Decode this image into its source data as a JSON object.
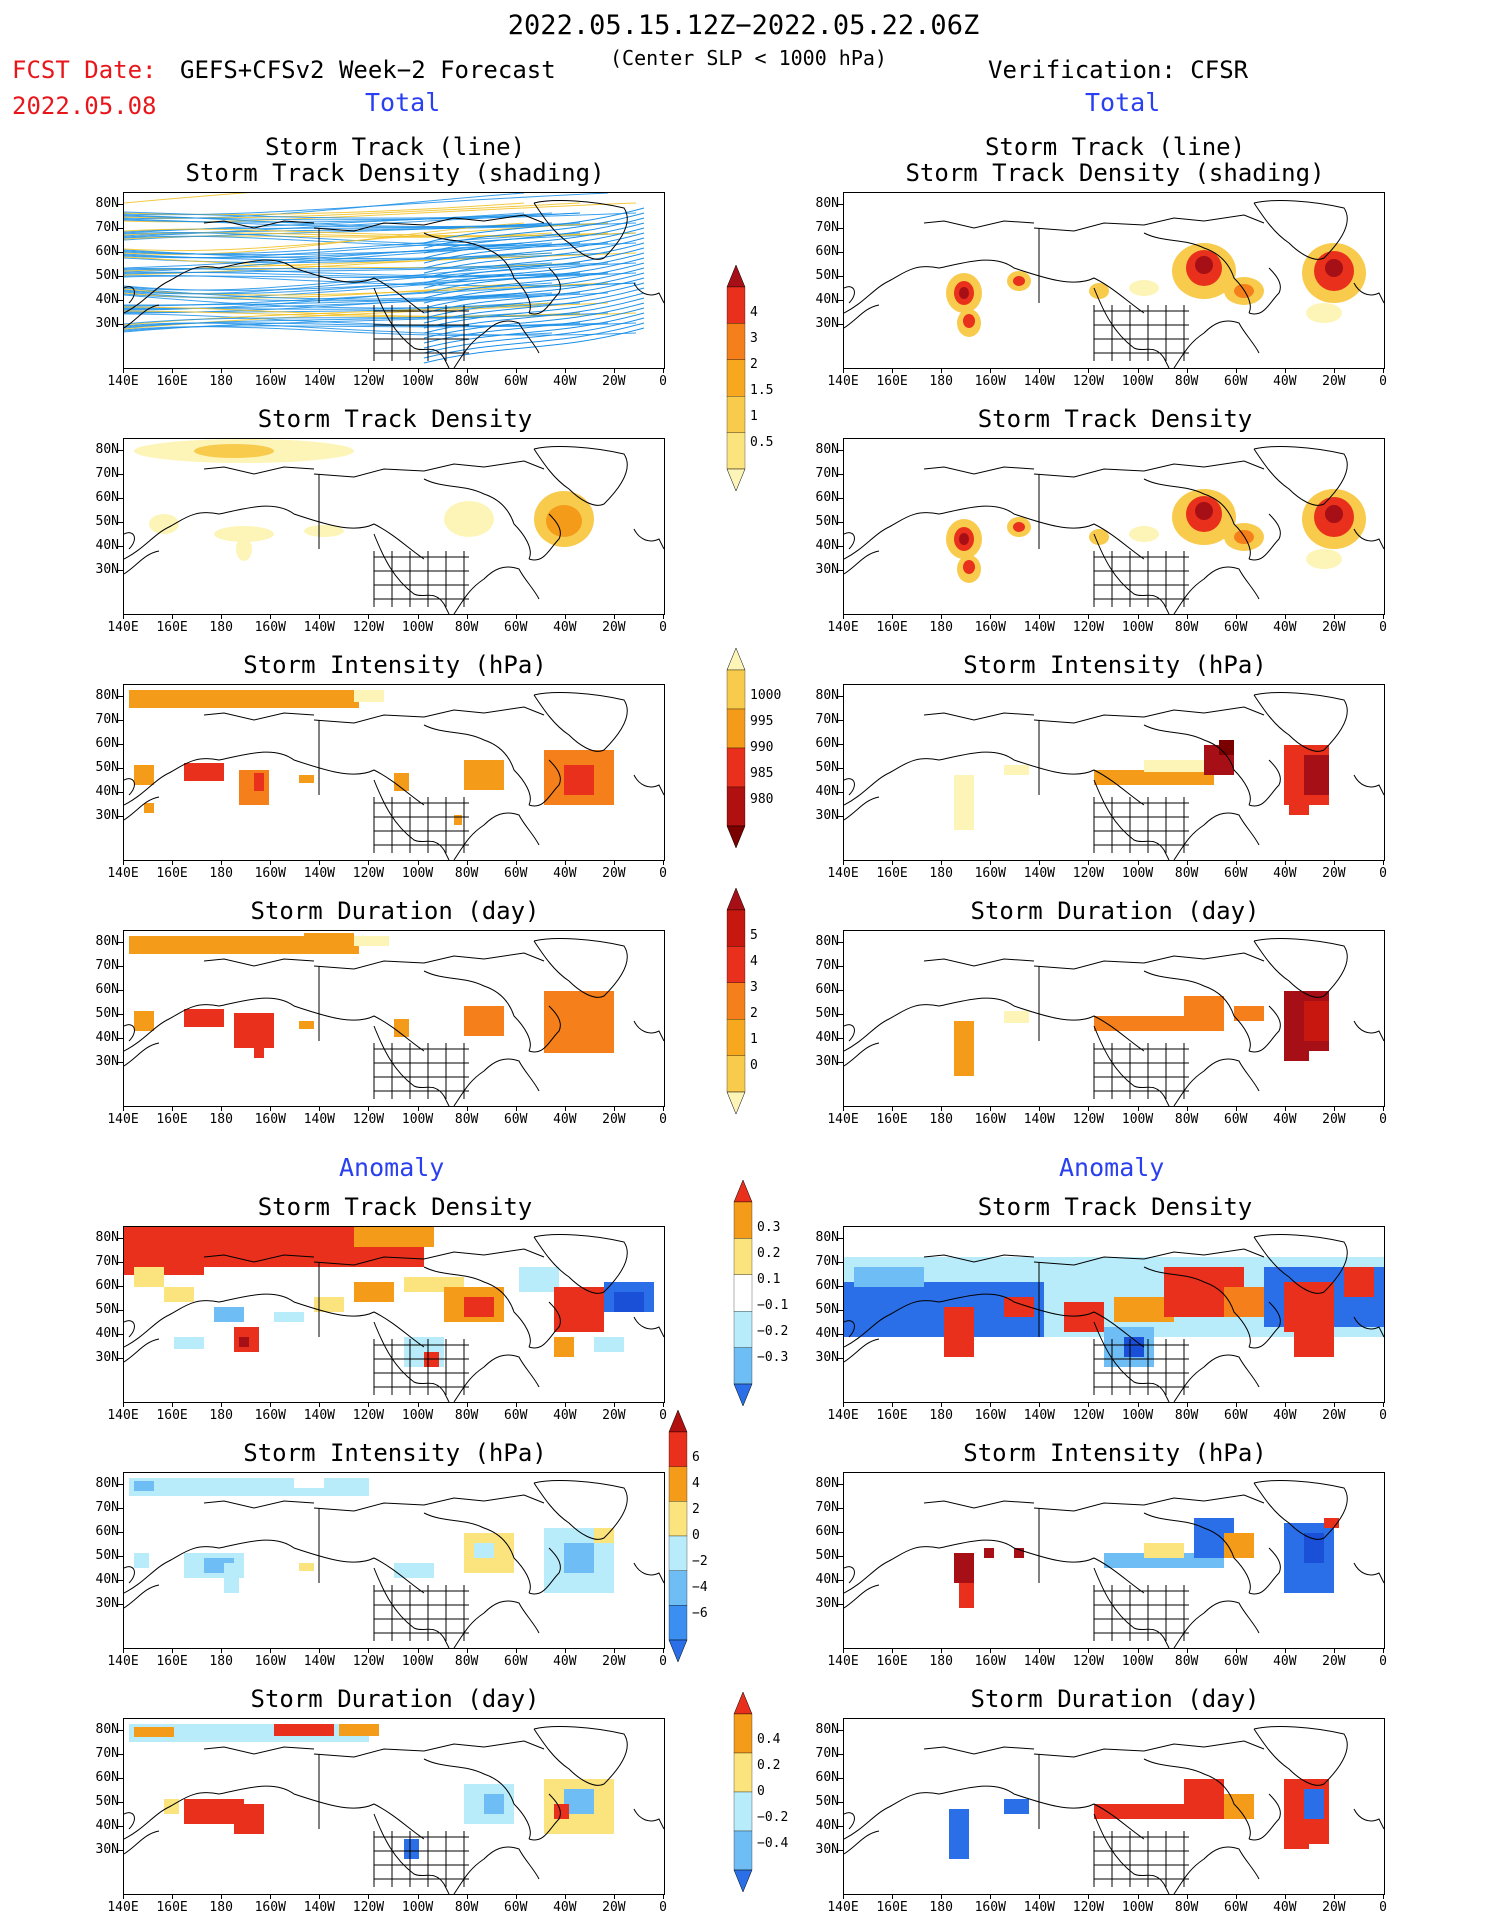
{
  "header": {
    "valid_period": "2022.05.15.12Z−2022.05.22.06Z",
    "fcst_label": "FCST Date:",
    "fcst_date": "2022.05.08",
    "product": "GEFS+CFSv2 Week−2 Forecast",
    "criterion": "(Center SLP < 1000 hPa)",
    "verification": "Verification: CFSR"
  },
  "sections": {
    "total": "Total",
    "anomaly": "Anomaly"
  },
  "panel_titles": {
    "track_line": "Storm Track (line)",
    "track_shading": "Storm Track Density (shading)",
    "density": "Storm Track Density",
    "intensity": "Storm Intensity (hPa)",
    "duration": "Storm Duration (day)"
  },
  "axes": {
    "lat_labels": [
      "80N",
      "70N",
      "60N",
      "50N",
      "40N",
      "30N"
    ],
    "lon_labels": [
      "140E",
      "160E",
      "180",
      "160W",
      "140W",
      "120W",
      "100W",
      "80W",
      "60W",
      "40W",
      "20W",
      "0"
    ]
  },
  "colorbars": {
    "density": {
      "labels": [
        "4",
        "3",
        "2",
        "1.5",
        "1",
        "0.5"
      ],
      "colors": [
        "#a50f15",
        "#e8301c",
        "#f57f1a",
        "#f7a81f",
        "#f8cb4c",
        "#fbe37e",
        "#fdf5b8"
      ]
    },
    "intensity": {
      "labels": [
        "1000",
        "995",
        "990",
        "985",
        "980"
      ],
      "colors": [
        "#fdf5b8",
        "#f8cb4c",
        "#f59b1a",
        "#e8301c",
        "#b0100f",
        "#7a0000"
      ]
    },
    "duration": {
      "labels": [
        "5",
        "4",
        "3",
        "2",
        "1",
        "0"
      ],
      "colors": [
        "#a50f15",
        "#c8170f",
        "#e8301c",
        "#f57f1a",
        "#f7a81f",
        "#f8cb4c",
        "#fdf5b8"
      ]
    },
    "anom_density": {
      "labels": [
        "0.3",
        "0.2",
        "0.1",
        "−0.1",
        "−0.2",
        "−0.3"
      ],
      "colors": [
        "#e8301c",
        "#f59b1a",
        "#fbe37e",
        "#ffffff",
        "#b9ecfb",
        "#6fbdf5",
        "#2a6fe8"
      ]
    },
    "anom_intensity": {
      "labels": [
        "6",
        "4",
        "2",
        "0",
        "−2",
        "−4",
        "−6"
      ],
      "colors": [
        "#b0100f",
        "#e8301c",
        "#f59b1a",
        "#fbe37e",
        "#b9ecfb",
        "#6fbdf5",
        "#3a8ff0",
        "#2a6fe8"
      ]
    },
    "anom_duration": {
      "labels": [
        "0.4",
        "0.2",
        "0",
        "−0.2",
        "−0.4"
      ],
      "colors": [
        "#e8301c",
        "#f59b1a",
        "#fbe37e",
        "#b9ecfb",
        "#6fbdf5",
        "#2a6fe8"
      ]
    }
  },
  "colors": {
    "title_red": "#e8161b",
    "section_blue": "#2a40f0",
    "track_blue": "#1a8fe8",
    "track_gold": "#f0c020"
  }
}
